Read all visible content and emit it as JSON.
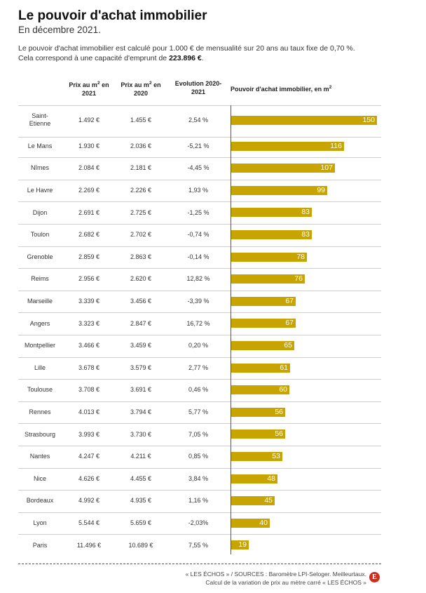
{
  "header": {
    "title": "Le pouvoir d'achat immobilier",
    "subtitle": "En décembre 2021.",
    "intro_line1": "Le pouvoir d'achat immobilier est calculé pour 1.000 € de mensualité sur 20 ans au taux fixe de 0,70 %.",
    "intro_line2_prefix": "Cela correspond à une capacité d'emprunt de ",
    "intro_line2_bold": "223.896 €",
    "intro_line2_suffix": "."
  },
  "columns": {
    "prix2021_a": "Prix au m",
    "prix2021_sup": "2",
    "prix2021_b": " en",
    "prix2021_c": "2021",
    "prix2020_a": "Prix au m",
    "prix2020_sup": "2",
    "prix2020_b": " en",
    "prix2020_c": "2020",
    "evolution_a": "Evolution 2020-",
    "evolution_b": "2021",
    "pouvoir_a": "Pouvoir d'achat immobilier, en m",
    "pouvoir_sup": "2"
  },
  "colors": {
    "bar": "#c8a400",
    "bar_label": "#ffffff",
    "logo": "#d32a1c"
  },
  "chart_data": {
    "type": "table",
    "columns": [
      "",
      "Prix au m2 en 2021",
      "Prix au m2 en 2020",
      "Evolution 2020-2021",
      "Pouvoir d'achat immobilier, en m2"
    ],
    "xlim": [
      0,
      150
    ],
    "rows": [
      {
        "city": "Saint-Etienne",
        "prix2021": "1.492 €",
        "prix2020": "1.455 €",
        "evolution": "2,54 %",
        "value": 150
      },
      {
        "city": "Le Mans",
        "prix2021": "1.930 €",
        "prix2020": "2.036 €",
        "evolution": "-5,21 %",
        "value": 116
      },
      {
        "city": "Nîmes",
        "prix2021": "2.084 €",
        "prix2020": "2.181 €",
        "evolution": "-4,45 %",
        "value": 107
      },
      {
        "city": "Le Havre",
        "prix2021": "2.269 €",
        "prix2020": "2.226 €",
        "evolution": "1,93 %",
        "value": 99
      },
      {
        "city": "Dijon",
        "prix2021": "2.691 €",
        "prix2020": "2.725 €",
        "evolution": "-1,25 %",
        "value": 83
      },
      {
        "city": "Toulon",
        "prix2021": "2.682 €",
        "prix2020": "2.702 €",
        "evolution": "-0,74 %",
        "value": 83
      },
      {
        "city": "Grenoble",
        "prix2021": "2.859 €",
        "prix2020": "2.863 €",
        "evolution": "-0,14 %",
        "value": 78
      },
      {
        "city": "Reims",
        "prix2021": "2.956 €",
        "prix2020": "2.620 €",
        "evolution": "12,82 %",
        "value": 76
      },
      {
        "city": "Marseille",
        "prix2021": "3.339 €",
        "prix2020": "3.456 €",
        "evolution": "-3,39 %",
        "value": 67
      },
      {
        "city": "Angers",
        "prix2021": "3.323 €",
        "prix2020": "2.847 €",
        "evolution": "16,72 %",
        "value": 67
      },
      {
        "city": "Montpellier",
        "prix2021": "3.466 €",
        "prix2020": "3.459 €",
        "evolution": "0,20 %",
        "value": 65
      },
      {
        "city": "Lille",
        "prix2021": "3.678 €",
        "prix2020": "3.579 €",
        "evolution": "2,77 %",
        "value": 61
      },
      {
        "city": "Toulouse",
        "prix2021": "3.708 €",
        "prix2020": "3.691 €",
        "evolution": "0,46 %",
        "value": 60
      },
      {
        "city": "Rennes",
        "prix2021": "4.013 €",
        "prix2020": "3.794 €",
        "evolution": "5,77 %",
        "value": 56
      },
      {
        "city": "Strasbourg",
        "prix2021": "3.993 €",
        "prix2020": "3.730 €",
        "evolution": "7,05 %",
        "value": 56
      },
      {
        "city": "Nantes",
        "prix2021": "4.247 €",
        "prix2020": "4.211 €",
        "evolution": "0,85 %",
        "value": 53
      },
      {
        "city": "Nice",
        "prix2021": "4.626 €",
        "prix2020": "4.455 €",
        "evolution": "3,84 %",
        "value": 48
      },
      {
        "city": "Bordeaux",
        "prix2021": "4.992 €",
        "prix2020": "4.935 €",
        "evolution": "1,16 %",
        "value": 45
      },
      {
        "city": "Lyon",
        "prix2021": "5.544 €",
        "prix2020": "5.659 €",
        "evolution": "-2,03%",
        "value": 40
      },
      {
        "city": "Paris",
        "prix2021": "11.496 €",
        "prix2020": "10.689 €",
        "evolution": "7,55 %",
        "value": 19
      }
    ]
  },
  "footer": {
    "line1": "« LES ÉCHOS » / SOURCES : Baromètre LPI-Seloger. Meilleurtaux.",
    "line2": "Calcul de la variation de prix au mètre carré « LES ÉCHOS »",
    "logo": "E"
  }
}
